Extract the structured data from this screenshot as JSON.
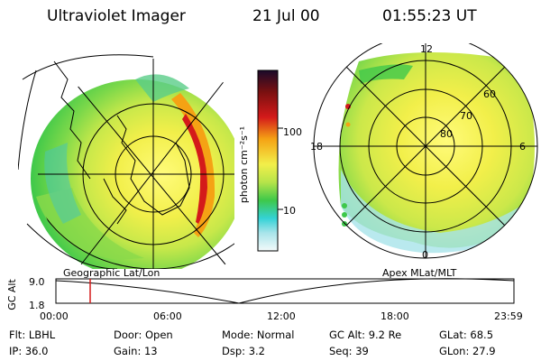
{
  "header": {
    "title": "Ultraviolet Imager",
    "date": "21 Jul 00",
    "time": "01:55:23 UT"
  },
  "colorbar": {
    "unit_label": "photon cm⁻²s⁻¹",
    "ticks": [
      "100",
      "10"
    ]
  },
  "polar": {
    "mlt_labels": {
      "top": "12",
      "left": "18",
      "right": "6",
      "bottom": "0"
    },
    "lat_labels": [
      "60",
      "70",
      "80"
    ]
  },
  "altitude_plot": {
    "left_title": "Geographic Lat/Lon",
    "right_title": "Apex MLat/MLT",
    "ylabel": "GC Alt",
    "yticks": [
      "9.0",
      "1.8"
    ],
    "xticks": [
      "00:00",
      "06:00",
      "12:00",
      "18:00",
      "23:59"
    ]
  },
  "info": {
    "row1": [
      {
        "label": "Flt:",
        "value": "LBHL"
      },
      {
        "label": "Door:",
        "value": "Open"
      },
      {
        "label": "Mode:",
        "value": "Normal"
      },
      {
        "label": "GC Alt:",
        "value": "9.2 Re"
      },
      {
        "label": "GLat:",
        "value": "68.5"
      }
    ],
    "row2": [
      {
        "label": "IP:",
        "value": "36.0"
      },
      {
        "label": "Gain:",
        "value": "13"
      },
      {
        "label": "Dsp:",
        "value": "3.2"
      },
      {
        "label": "Seq:",
        "value": "39"
      },
      {
        "label": "GLon:",
        "value": "27.9"
      }
    ]
  },
  "colors": {
    "bar_top": "#1a0a2a",
    "bar_red": "#d41a1a",
    "bar_orange": "#f5a214",
    "bar_yellow": "#f2ef4a",
    "bar_green": "#3ec84a",
    "bar_cyan": "#34d2d6",
    "bar_light": "#e8f4f4"
  }
}
